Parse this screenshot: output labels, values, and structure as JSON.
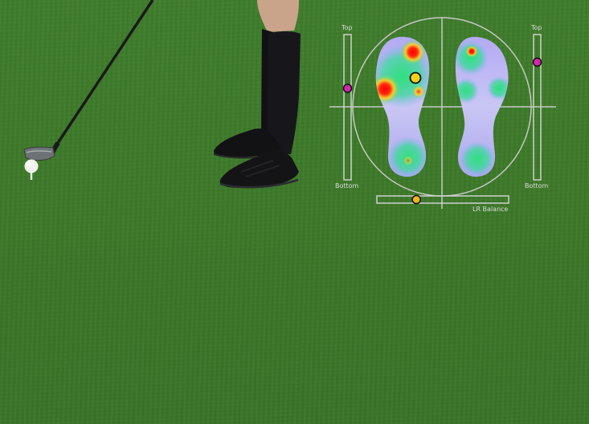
{
  "overlay": {
    "left_gauge": {
      "top_label": "Top",
      "bottom_label": "Bottom",
      "position": 0.37,
      "marker_color": "#d426b0"
    },
    "right_gauge": {
      "top_label": "Top",
      "bottom_label": "Bottom",
      "position": 0.19,
      "marker_color": "#d426b0"
    },
    "lr_gauge": {
      "label": "LR Balance",
      "position": 0.3,
      "marker_color": "#f2b61c"
    },
    "center_of_pressure_color": "#f2d21c",
    "heatmap_colors": [
      "#a5a3f2",
      "#33e37a",
      "#ff1a1a"
    ]
  }
}
